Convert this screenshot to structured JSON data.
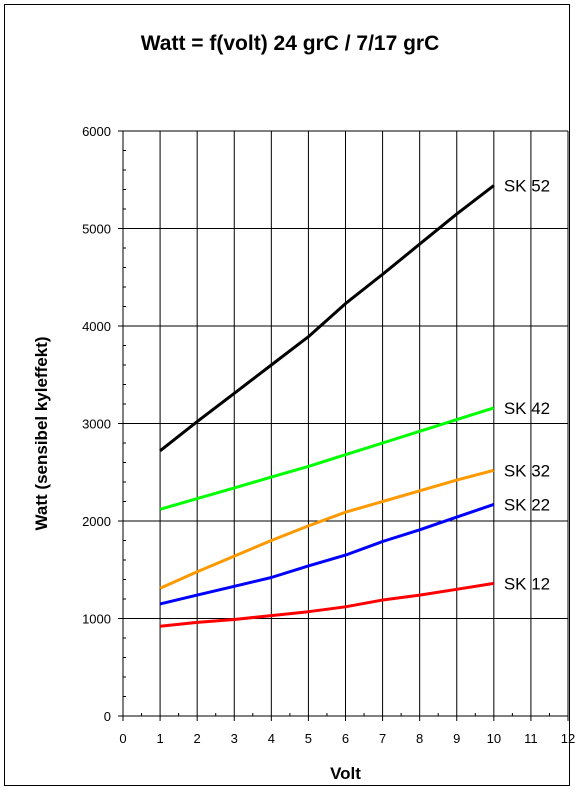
{
  "chart_data": {
    "type": "line",
    "title": "Watt = f(volt)  24 grC / 7/17 grC",
    "xlabel": "Volt",
    "ylabel": "Watt (sensibel kyleffekt)",
    "xlim": [
      0,
      12
    ],
    "ylim": [
      0,
      6000
    ],
    "xticks": [
      0,
      1,
      2,
      3,
      4,
      5,
      6,
      7,
      8,
      9,
      10,
      11,
      12
    ],
    "yticks": [
      0,
      1000,
      2000,
      3000,
      4000,
      5000,
      6000
    ],
    "grid": true,
    "legend": "inline labels at line ends",
    "series": [
      {
        "name": "SK 52",
        "color": "#000000",
        "x": [
          1,
          2,
          3,
          4,
          5,
          6,
          7,
          8,
          9,
          10
        ],
        "values": [
          2720,
          3020,
          3310,
          3600,
          3890,
          4230,
          4530,
          4840,
          5150,
          5440
        ]
      },
      {
        "name": "SK 42",
        "color": "#00ff00",
        "x": [
          1,
          2,
          3,
          4,
          5,
          6,
          7,
          8,
          9,
          10
        ],
        "values": [
          2120,
          2230,
          2340,
          2450,
          2560,
          2680,
          2800,
          2920,
          3040,
          3160
        ]
      },
      {
        "name": "SK 32",
        "color": "#ff9900",
        "x": [
          1,
          2,
          3,
          4,
          5,
          6,
          7,
          8,
          9,
          10
        ],
        "values": [
          1310,
          1480,
          1640,
          1800,
          1950,
          2090,
          2200,
          2310,
          2420,
          2520
        ]
      },
      {
        "name": "SK 22",
        "color": "#0000ff",
        "x": [
          1,
          2,
          3,
          4,
          5,
          6,
          7,
          8,
          9,
          10
        ],
        "values": [
          1150,
          1240,
          1330,
          1420,
          1540,
          1650,
          1790,
          1910,
          2040,
          2170
        ]
      },
      {
        "name": "SK 12",
        "color": "#ff0000",
        "x": [
          1,
          2,
          3,
          4,
          5,
          6,
          7,
          8,
          9,
          10
        ],
        "values": [
          920,
          960,
          990,
          1030,
          1070,
          1120,
          1190,
          1240,
          1300,
          1360
        ]
      }
    ]
  }
}
